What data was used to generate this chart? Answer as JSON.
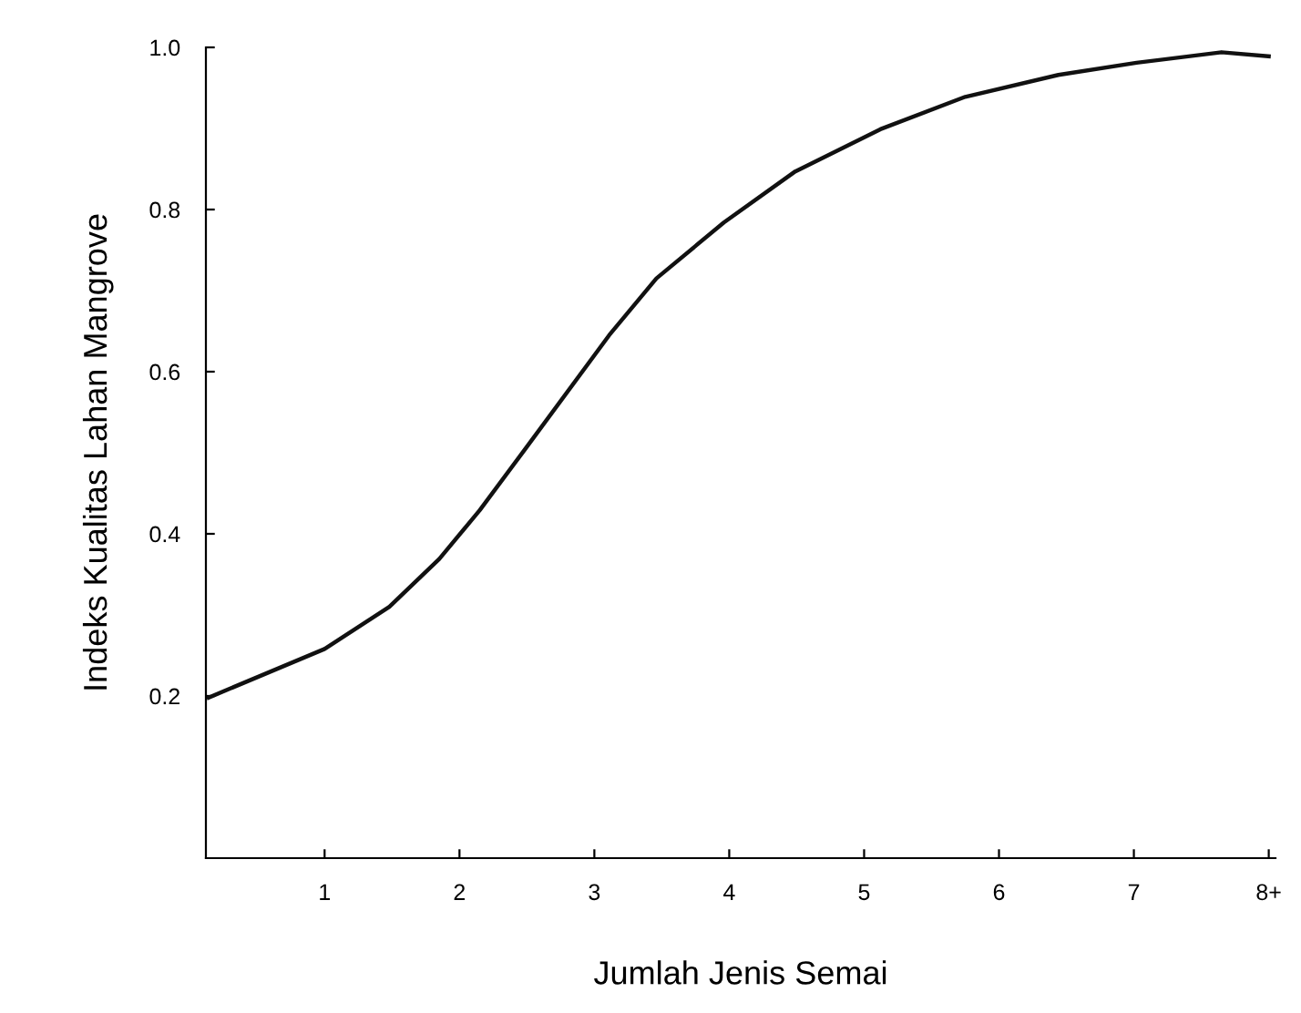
{
  "chart_data": {
    "type": "line",
    "xlabel": "Jumlah Jenis Semai",
    "ylabel": "Indeks Kualitas Lahan Mangrove",
    "xlim": [
      0.12,
      8.05
    ],
    "ylim": [
      0,
      1.0
    ],
    "xticks": [
      1,
      2,
      3,
      4,
      5,
      6,
      7,
      {
        "value": 8,
        "label": "8+"
      }
    ],
    "yticks": [
      {
        "value": 0.2,
        "label": "0.2"
      },
      {
        "value": 0.4,
        "label": "0.4"
      },
      {
        "value": 0.6,
        "label": "0.6"
      },
      {
        "value": 0.8,
        "label": "0.8"
      },
      {
        "value": 1.0,
        "label": "1.0"
      }
    ],
    "grid": false,
    "legend": false,
    "marker": "none",
    "line_style": "solid",
    "series": [
      {
        "color": "#111111",
        "x": [
          0.14,
          1.0,
          1.48,
          1.85,
          2.15,
          2.48,
          3.11,
          3.46,
          3.96,
          4.49,
          5.12,
          5.75,
          6.44,
          7.02,
          7.65,
          8.0
        ],
        "values": [
          0.198,
          0.258,
          0.31,
          0.369,
          0.429,
          0.503,
          0.645,
          0.715,
          0.784,
          0.847,
          0.899,
          0.939,
          0.966,
          0.981,
          0.994,
          0.989
        ]
      }
    ]
  }
}
